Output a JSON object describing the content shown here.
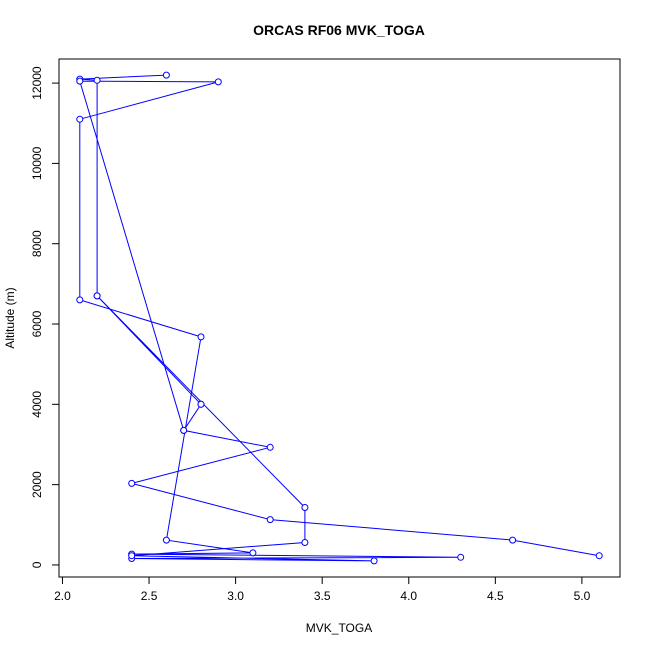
{
  "chart_data": {
    "type": "line",
    "title": "ORCAS RF06 MVK_TOGA",
    "xlabel": "MVK_TOGA",
    "ylabel": "Altitude (m)",
    "xlim": [
      1.98,
      5.22
    ],
    "ylim": [
      -300,
      12600
    ],
    "xticks": [
      2.0,
      2.5,
      3.0,
      3.5,
      4.0,
      4.5,
      5.0
    ],
    "xtick_labels": [
      "2.0",
      "2.5",
      "3.0",
      "3.5",
      "4.0",
      "4.5",
      "5.0"
    ],
    "yticks": [
      0,
      2000,
      4000,
      6000,
      8000,
      10000,
      12000
    ],
    "ytick_labels": [
      "0",
      "2000",
      "4000",
      "6000",
      "8000",
      "10000",
      "12000"
    ],
    "color": "#0000ff",
    "marker": "open-circle",
    "grid": false,
    "series": [
      {
        "x": [
          2.6,
          2.1,
          2.2,
          2.2,
          2.8,
          2.7,
          2.1,
          2.9,
          2.1,
          2.1,
          2.8,
          2.6,
          3.1,
          2.4,
          4.3,
          2.4,
          3.8,
          2.4,
          3.4,
          3.4,
          2.2,
          2.8,
          2.7,
          3.2,
          2.4,
          3.2,
          4.6,
          5.1
        ],
        "y": [
          12200,
          12100,
          12070,
          6700,
          4000,
          3350,
          12050,
          12030,
          11100,
          6600,
          5680,
          620,
          300,
          270,
          190,
          160,
          100,
          230,
          560,
          1430,
          6700,
          4000,
          3350,
          2930,
          2030,
          1130,
          620,
          230
        ]
      }
    ]
  }
}
